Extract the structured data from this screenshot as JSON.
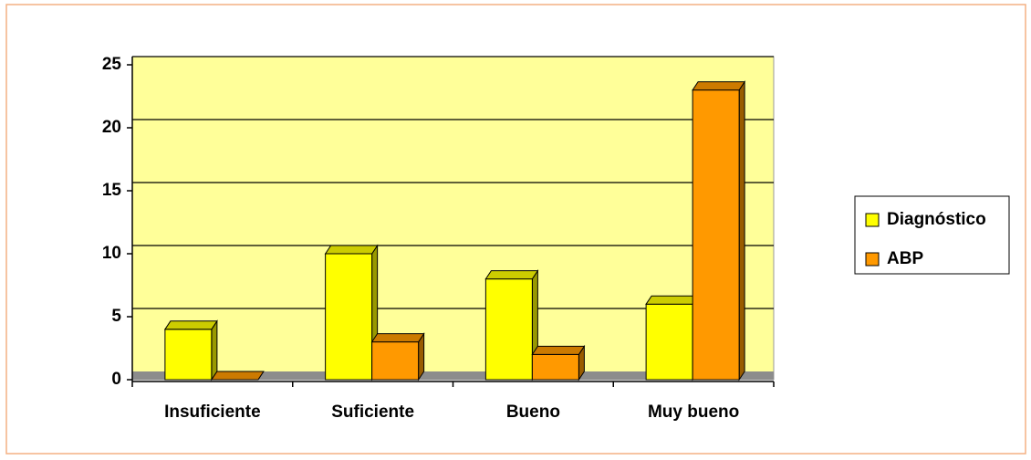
{
  "chart_data": {
    "type": "bar3d",
    "categories": [
      "Insuficiente",
      "Suficiente",
      "Bueno",
      "Muy bueno"
    ],
    "series": [
      {
        "name": "Diagnóstico",
        "color": "#ffff00",
        "values": [
          4,
          10,
          8,
          6
        ]
      },
      {
        "name": "ABP",
        "color": "#ff9900",
        "values": [
          0,
          3,
          2,
          23
        ]
      }
    ],
    "ylim": [
      0,
      25
    ],
    "yticks": [
      0,
      5,
      10,
      15,
      20,
      25
    ],
    "grid": true,
    "legend": "right"
  }
}
